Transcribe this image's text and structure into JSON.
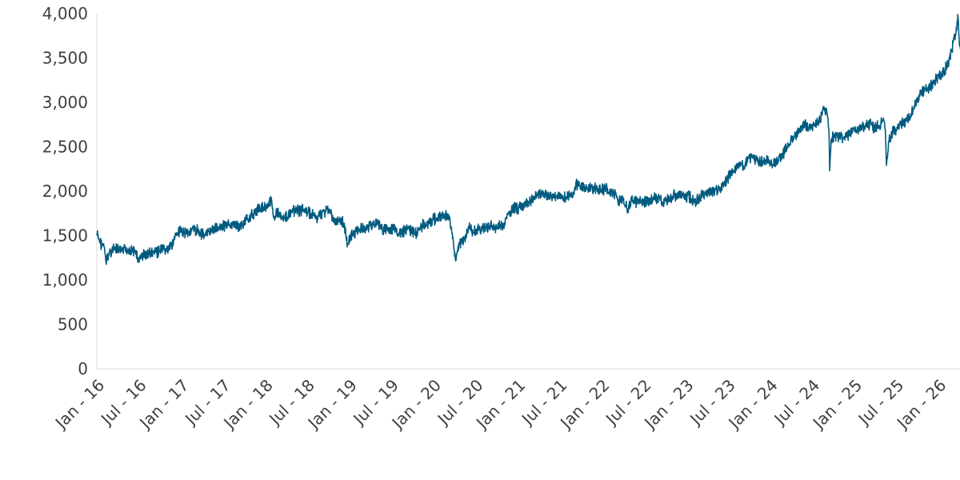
{
  "chart_data": {
    "type": "line",
    "title": "",
    "xlabel": "",
    "ylabel": "",
    "ylim": [
      0,
      4000
    ],
    "xlim": [
      "2016-01",
      "2026-04"
    ],
    "grid": false,
    "legend": "none",
    "y_ticks": [
      {
        "value": 0,
        "label": "0"
      },
      {
        "value": 500,
        "label": "500"
      },
      {
        "value": 1000,
        "label": "1,000"
      },
      {
        "value": 1500,
        "label": "1,500"
      },
      {
        "value": 2000,
        "label": "2,000"
      },
      {
        "value": 2500,
        "label": "2,500"
      },
      {
        "value": 3000,
        "label": "3,000"
      },
      {
        "value": 3500,
        "label": "3,500"
      },
      {
        "value": 4000,
        "label": "4,000"
      }
    ],
    "x_ticks": [
      {
        "value": "2016-01",
        "label": "Jan - 16"
      },
      {
        "value": "2016-07",
        "label": "Jul - 16"
      },
      {
        "value": "2017-01",
        "label": "Jan - 17"
      },
      {
        "value": "2017-07",
        "label": "Jul - 17"
      },
      {
        "value": "2018-01",
        "label": "Jan - 18"
      },
      {
        "value": "2018-07",
        "label": "Jul - 18"
      },
      {
        "value": "2019-01",
        "label": "Jan - 19"
      },
      {
        "value": "2019-07",
        "label": "Jul - 19"
      },
      {
        "value": "2020-01",
        "label": "Jan - 20"
      },
      {
        "value": "2020-07",
        "label": "Jul - 20"
      },
      {
        "value": "2021-01",
        "label": "Jan - 21"
      },
      {
        "value": "2021-07",
        "label": "Jul - 21"
      },
      {
        "value": "2022-01",
        "label": "Jan - 22"
      },
      {
        "value": "2022-07",
        "label": "Jul - 22"
      },
      {
        "value": "2023-01",
        "label": "Jan - 23"
      },
      {
        "value": "2023-07",
        "label": "Jul - 23"
      },
      {
        "value": "2024-01",
        "label": "Jan - 24"
      },
      {
        "value": "2024-07",
        "label": "Jul - 24"
      },
      {
        "value": "2025-01",
        "label": "Jan - 25"
      },
      {
        "value": "2025-07",
        "label": "Jul - 25"
      },
      {
        "value": "2026-01",
        "label": "Jan - 26"
      }
    ],
    "series": [
      {
        "color": "#005b7f",
        "points": [
          [
            "2016-01-01",
            1520
          ],
          [
            "2016-01-15",
            1420
          ],
          [
            "2016-02-01",
            1380
          ],
          [
            "2016-02-10",
            1200
          ],
          [
            "2016-02-25",
            1310
          ],
          [
            "2016-03-15",
            1350
          ],
          [
            "2016-04-15",
            1320
          ],
          [
            "2016-05-15",
            1350
          ],
          [
            "2016-06-20",
            1310
          ],
          [
            "2016-06-27",
            1200
          ],
          [
            "2016-07-15",
            1280
          ],
          [
            "2016-08-15",
            1300
          ],
          [
            "2016-09-15",
            1310
          ],
          [
            "2016-10-15",
            1340
          ],
          [
            "2016-11-10",
            1340
          ],
          [
            "2016-12-01",
            1460
          ],
          [
            "2016-12-20",
            1530
          ],
          [
            "2017-01-15",
            1540
          ],
          [
            "2017-02-15",
            1550
          ],
          [
            "2017-03-15",
            1560
          ],
          [
            "2017-04-15",
            1500
          ],
          [
            "2017-05-15",
            1560
          ],
          [
            "2017-06-15",
            1600
          ],
          [
            "2017-07-15",
            1610
          ],
          [
            "2017-08-15",
            1620
          ],
          [
            "2017-09-15",
            1610
          ],
          [
            "2017-10-15",
            1680
          ],
          [
            "2017-11-15",
            1760
          ],
          [
            "2017-12-15",
            1820
          ],
          [
            "2018-01-15",
            1840
          ],
          [
            "2018-01-26",
            1890
          ],
          [
            "2018-02-08",
            1720
          ],
          [
            "2018-03-01",
            1760
          ],
          [
            "2018-03-25",
            1700
          ],
          [
            "2018-04-15",
            1740
          ],
          [
            "2018-05-15",
            1780
          ],
          [
            "2018-06-15",
            1790
          ],
          [
            "2018-07-15",
            1740
          ],
          [
            "2018-08-15",
            1700
          ],
          [
            "2018-09-15",
            1780
          ],
          [
            "2018-10-05",
            1800
          ],
          [
            "2018-10-25",
            1660
          ],
          [
            "2018-11-15",
            1660
          ],
          [
            "2018-12-10",
            1640
          ],
          [
            "2018-12-24",
            1410
          ],
          [
            "2019-01-15",
            1520
          ],
          [
            "2019-02-15",
            1570
          ],
          [
            "2019-03-15",
            1590
          ],
          [
            "2019-04-15",
            1630
          ],
          [
            "2019-05-15",
            1620
          ],
          [
            "2019-06-01",
            1560
          ],
          [
            "2019-06-15",
            1570
          ],
          [
            "2019-07-15",
            1560
          ],
          [
            "2019-08-15",
            1520
          ],
          [
            "2019-09-15",
            1580
          ],
          [
            "2019-10-15",
            1520
          ],
          [
            "2019-11-15",
            1620
          ],
          [
            "2019-12-15",
            1650
          ],
          [
            "2020-01-15",
            1700
          ],
          [
            "2020-02-15",
            1730
          ],
          [
            "2020-03-01",
            1720
          ],
          [
            "2020-03-10",
            1690
          ],
          [
            "2020-03-20",
            1560
          ],
          [
            "2020-04-05",
            1250
          ],
          [
            "2020-04-25",
            1420
          ],
          [
            "2020-05-15",
            1460
          ],
          [
            "2020-06-08",
            1600
          ],
          [
            "2020-06-25",
            1540
          ],
          [
            "2020-07-15",
            1560
          ],
          [
            "2020-08-15",
            1600
          ],
          [
            "2020-09-15",
            1600
          ],
          [
            "2020-10-15",
            1600
          ],
          [
            "2020-11-01",
            1610
          ],
          [
            "2020-11-20",
            1740
          ],
          [
            "2020-12-15",
            1800
          ],
          [
            "2021-01-15",
            1820
          ],
          [
            "2021-02-15",
            1860
          ],
          [
            "2021-03-15",
            1940
          ],
          [
            "2021-04-15",
            1970
          ],
          [
            "2021-05-15",
            1950
          ],
          [
            "2021-06-15",
            1940
          ],
          [
            "2021-07-15",
            1950
          ],
          [
            "2021-08-15",
            1940
          ],
          [
            "2021-09-01",
            1960
          ],
          [
            "2021-09-10",
            2100
          ],
          [
            "2021-10-01",
            2040
          ],
          [
            "2021-11-01",
            2030
          ],
          [
            "2021-12-15",
            2020
          ],
          [
            "2022-01-15",
            2020
          ],
          [
            "2022-02-15",
            2000
          ],
          [
            "2022-03-01",
            1960
          ],
          [
            "2022-03-15",
            1860
          ],
          [
            "2022-04-01",
            1930
          ],
          [
            "2022-04-20",
            1800
          ],
          [
            "2022-05-15",
            1900
          ],
          [
            "2022-06-15",
            1870
          ],
          [
            "2022-07-15",
            1880
          ],
          [
            "2022-08-15",
            1920
          ],
          [
            "2022-09-01",
            1940
          ],
          [
            "2022-09-20",
            1880
          ],
          [
            "2022-10-15",
            1900
          ],
          [
            "2022-11-15",
            1950
          ],
          [
            "2022-12-15",
            1950
          ],
          [
            "2023-01-15",
            1930
          ],
          [
            "2023-02-15",
            1890
          ],
          [
            "2023-03-15",
            1960
          ],
          [
            "2023-04-15",
            2000
          ],
          [
            "2023-05-15",
            2010
          ],
          [
            "2023-06-15",
            2080
          ],
          [
            "2023-07-15",
            2200
          ],
          [
            "2023-08-15",
            2290
          ],
          [
            "2023-09-15",
            2300
          ],
          [
            "2023-10-15",
            2380
          ],
          [
            "2023-11-15",
            2320
          ],
          [
            "2023-12-15",
            2350
          ],
          [
            "2024-01-15",
            2300
          ],
          [
            "2024-02-15",
            2380
          ],
          [
            "2024-03-15",
            2500
          ],
          [
            "2024-04-15",
            2600
          ],
          [
            "2024-05-15",
            2720
          ],
          [
            "2024-06-01",
            2750
          ],
          [
            "2024-06-15",
            2710
          ],
          [
            "2024-07-15",
            2740
          ],
          [
            "2024-08-01",
            2800
          ],
          [
            "2024-08-20",
            2920
          ],
          [
            "2024-09-05",
            2880
          ],
          [
            "2024-09-12",
            2700
          ],
          [
            "2024-09-16",
            2230
          ],
          [
            "2024-09-22",
            2580
          ],
          [
            "2024-10-15",
            2630
          ],
          [
            "2024-11-15",
            2600
          ],
          [
            "2024-12-15",
            2660
          ],
          [
            "2025-01-15",
            2700
          ],
          [
            "2025-02-15",
            2730
          ],
          [
            "2025-03-15",
            2760
          ],
          [
            "2025-04-01",
            2700
          ],
          [
            "2025-04-15",
            2740
          ],
          [
            "2025-05-01",
            2780
          ],
          [
            "2025-05-10",
            2790
          ],
          [
            "2025-05-15",
            2700
          ],
          [
            "2025-05-20",
            2290
          ],
          [
            "2025-06-01",
            2580
          ],
          [
            "2025-06-15",
            2660
          ],
          [
            "2025-07-15",
            2740
          ],
          [
            "2025-08-15",
            2800
          ],
          [
            "2025-09-15",
            2930
          ],
          [
            "2025-10-15",
            3100
          ],
          [
            "2025-11-15",
            3150
          ],
          [
            "2025-12-15",
            3250
          ],
          [
            "2026-01-15",
            3300
          ],
          [
            "2026-02-15",
            3450
          ],
          [
            "2026-03-01",
            3600
          ],
          [
            "2026-03-20",
            3850
          ],
          [
            "2026-03-27",
            3950
          ],
          [
            "2026-04-02",
            3650
          ],
          [
            "2026-04-10",
            3560
          ],
          [
            "2026-04-15",
            3700
          ],
          [
            "2026-04-20",
            3500
          ],
          [
            "2026-04-27",
            3720
          ],
          [
            "2026-05-04",
            3800
          ]
        ]
      }
    ]
  }
}
